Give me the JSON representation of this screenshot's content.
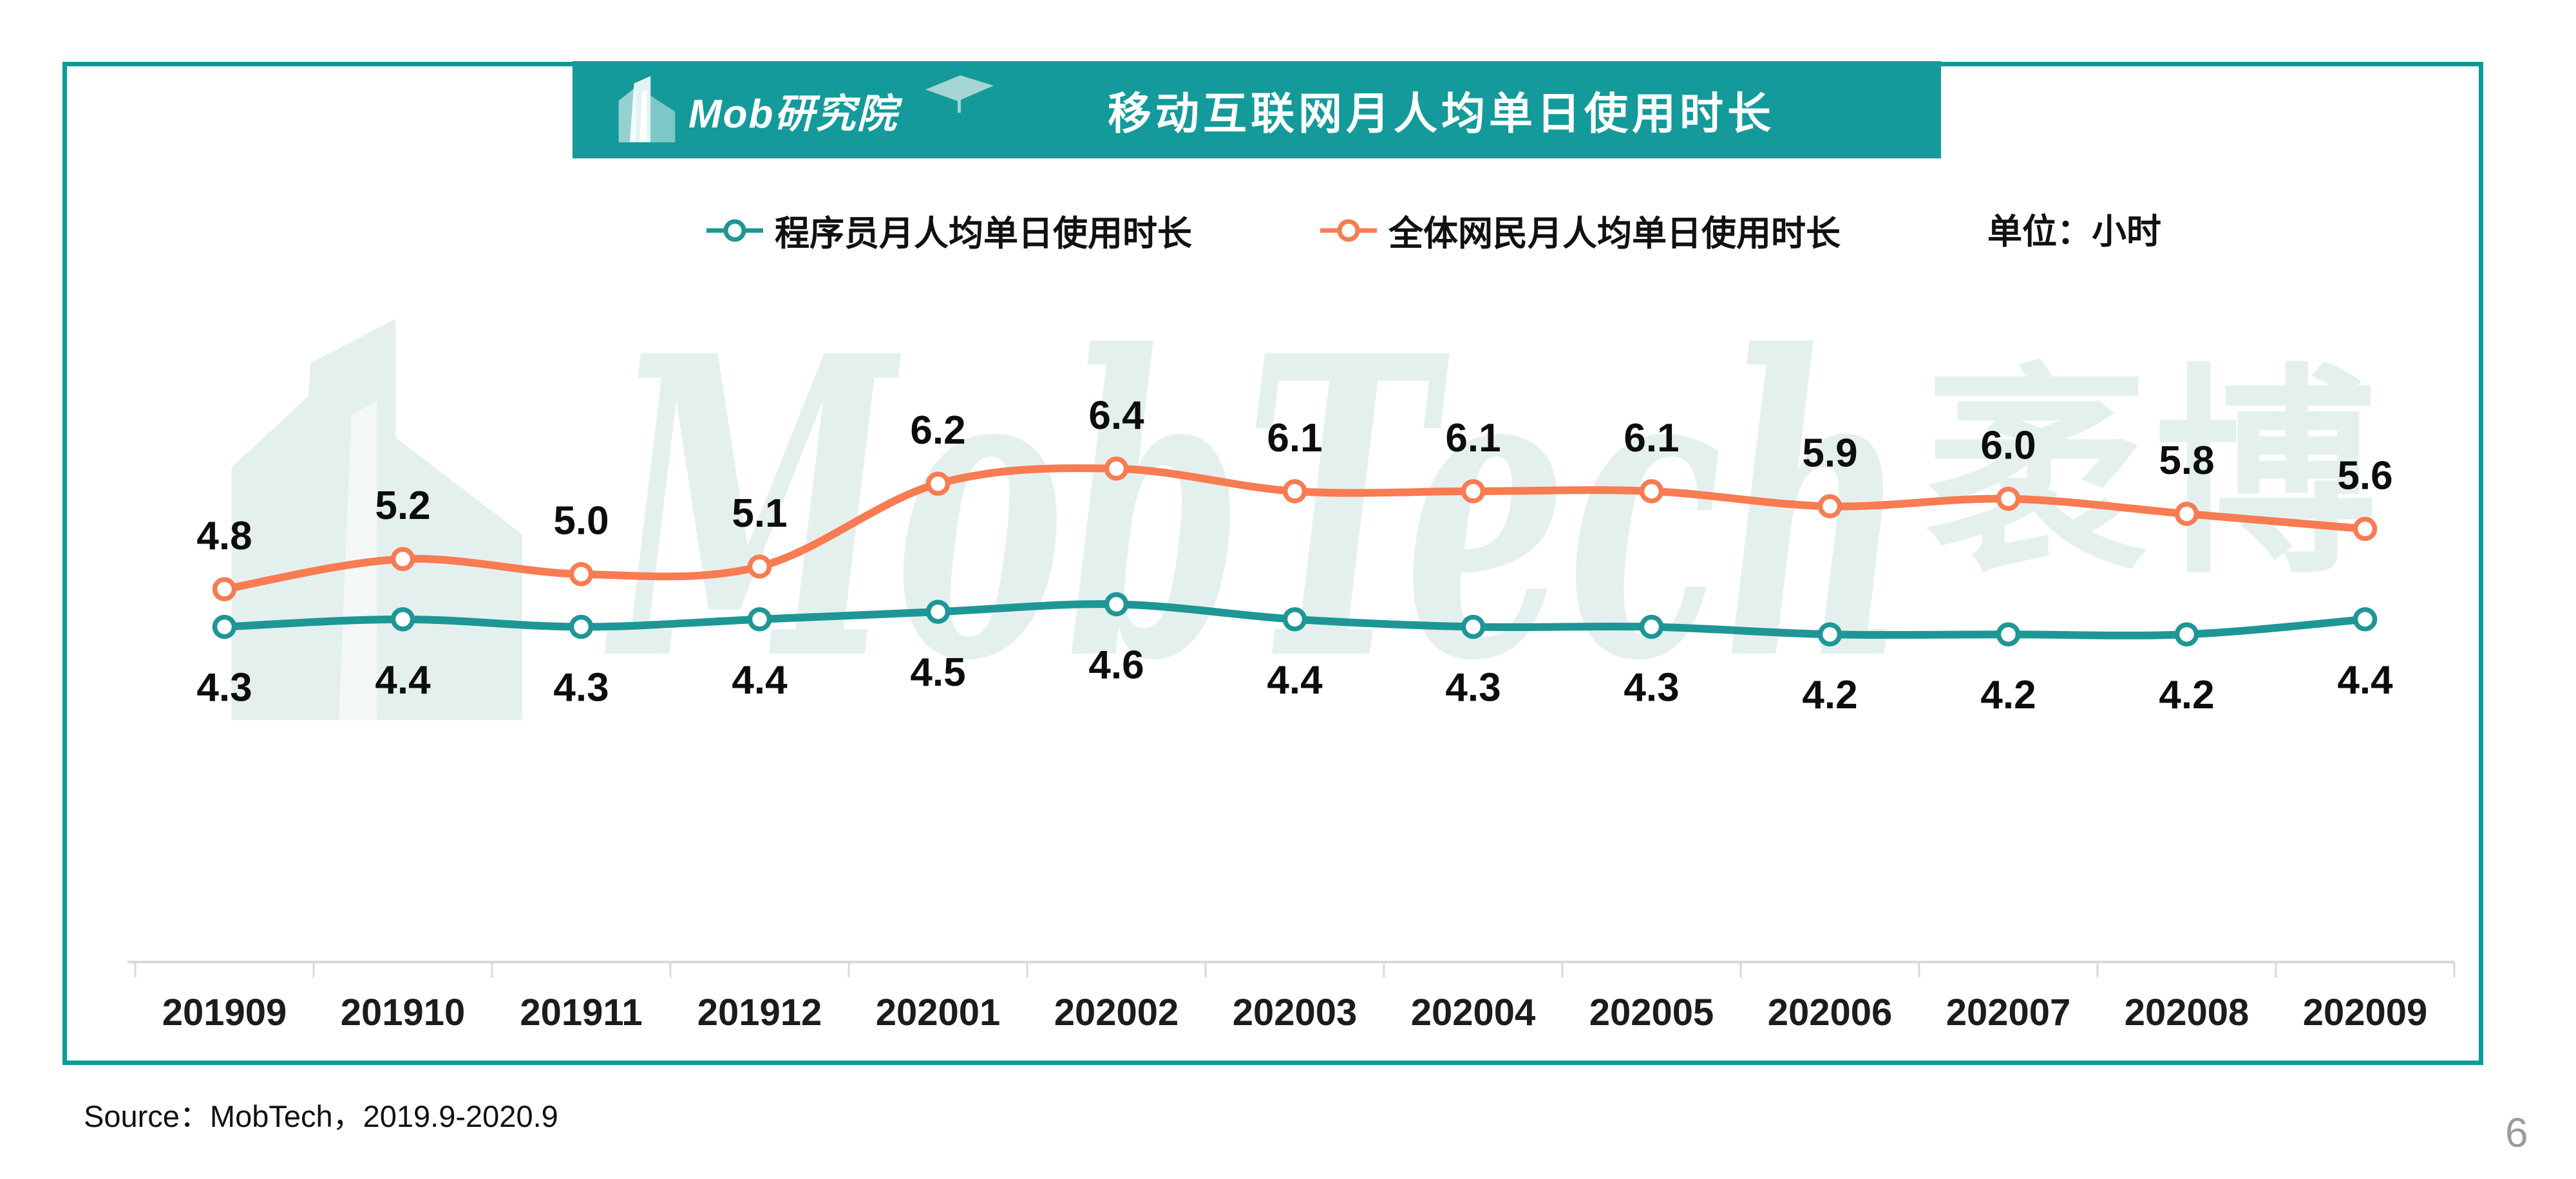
{
  "header": {
    "logo_text": "Mob研究院",
    "title": "移动互联网月人均单日使用时长"
  },
  "legend": {
    "series1_label": "程序员月人均单日使用时长",
    "series2_label": "全体网民月人均单日使用时长",
    "unit_label": "单位：小时"
  },
  "watermark": {
    "text_en": "MobTech",
    "text_cn": "袤博"
  },
  "footer": {
    "source": "Source：MobTech，2019.9-2020.9",
    "page_number": "6"
  },
  "colors": {
    "brand_teal": "#149A9A",
    "series_programmer": "#1E9696",
    "series_all_users": "#F87B52",
    "axis_gray": "#D9D9D9",
    "watermark": "#E4F0EE"
  },
  "chart_data": {
    "type": "line",
    "title": "移动互联网月人均单日使用时长",
    "unit": "小时",
    "categories": [
      "201909",
      "201910",
      "201911",
      "201912",
      "202001",
      "202002",
      "202003",
      "202004",
      "202005",
      "202006",
      "202007",
      "202008",
      "202009"
    ],
    "series": [
      {
        "name": "程序员月人均单日使用时长",
        "color": "#1E9696",
        "label_position": "below",
        "values": [
          4.3,
          4.4,
          4.3,
          4.4,
          4.5,
          4.6,
          4.4,
          4.3,
          4.3,
          4.2,
          4.2,
          4.2,
          4.4
        ]
      },
      {
        "name": "全体网民月人均单日使用时长",
        "color": "#F87B52",
        "label_position": "above",
        "values": [
          4.8,
          5.2,
          5.0,
          5.1,
          6.2,
          6.4,
          6.1,
          6.1,
          6.1,
          5.9,
          6.0,
          5.8,
          5.6
        ]
      }
    ],
    "ylim": [
      0,
      9
    ],
    "grid": false,
    "legend_position": "top",
    "x_axis": {
      "line_color": "#D9D9D9",
      "tick_marks": "outside"
    }
  }
}
